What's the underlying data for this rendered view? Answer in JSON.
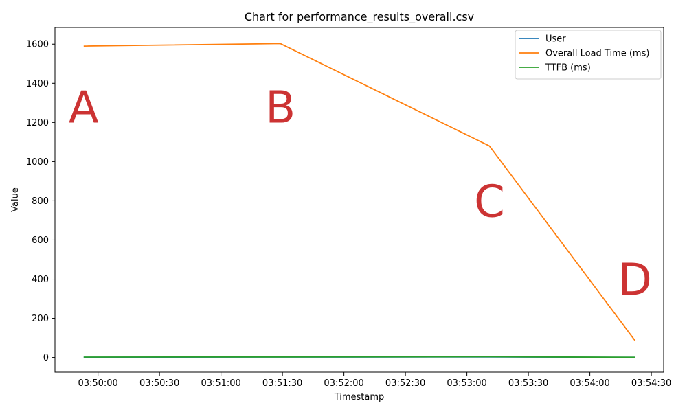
{
  "chart_data": {
    "type": "line",
    "title": "Chart for performance_results_overall.csv",
    "xlabel": "Timestamp",
    "ylabel": "Value",
    "x": [
      "03:49:53",
      "03:51:29",
      "03:53:11",
      "03:54:22"
    ],
    "series": [
      {
        "name": "User",
        "color": "#1f77b4",
        "values": [
          1,
          2,
          3,
          1
        ]
      },
      {
        "name": "Overall Load Time (ms)",
        "color": "#ff7f0e",
        "values": [
          1590,
          1603,
          1080,
          87
        ]
      },
      {
        "name": "TTFB (ms)",
        "color": "#2ca02c",
        "values": [
          2,
          3,
          4,
          1
        ]
      }
    ],
    "xlim": [
      "03:49:39",
      "03:54:36"
    ],
    "ylim": [
      -75,
      1685
    ],
    "x_ticks": [
      "03:50:00",
      "03:50:30",
      "03:51:00",
      "03:51:30",
      "03:52:00",
      "03:52:30",
      "03:53:00",
      "03:53:30",
      "03:54:00",
      "03:54:30"
    ],
    "y_ticks": [
      0,
      200,
      400,
      600,
      800,
      1000,
      1200,
      1400,
      1600
    ],
    "legend_position": "top-right",
    "grid": false,
    "annotations": [
      {
        "text": "A",
        "x": "03:49:53",
        "y": 1280
      },
      {
        "text": "B",
        "x": "03:51:29",
        "y": 1280
      },
      {
        "text": "C",
        "x": "03:53:11",
        "y": 800
      },
      {
        "text": "D",
        "x": "03:54:22",
        "y": 400
      }
    ]
  }
}
